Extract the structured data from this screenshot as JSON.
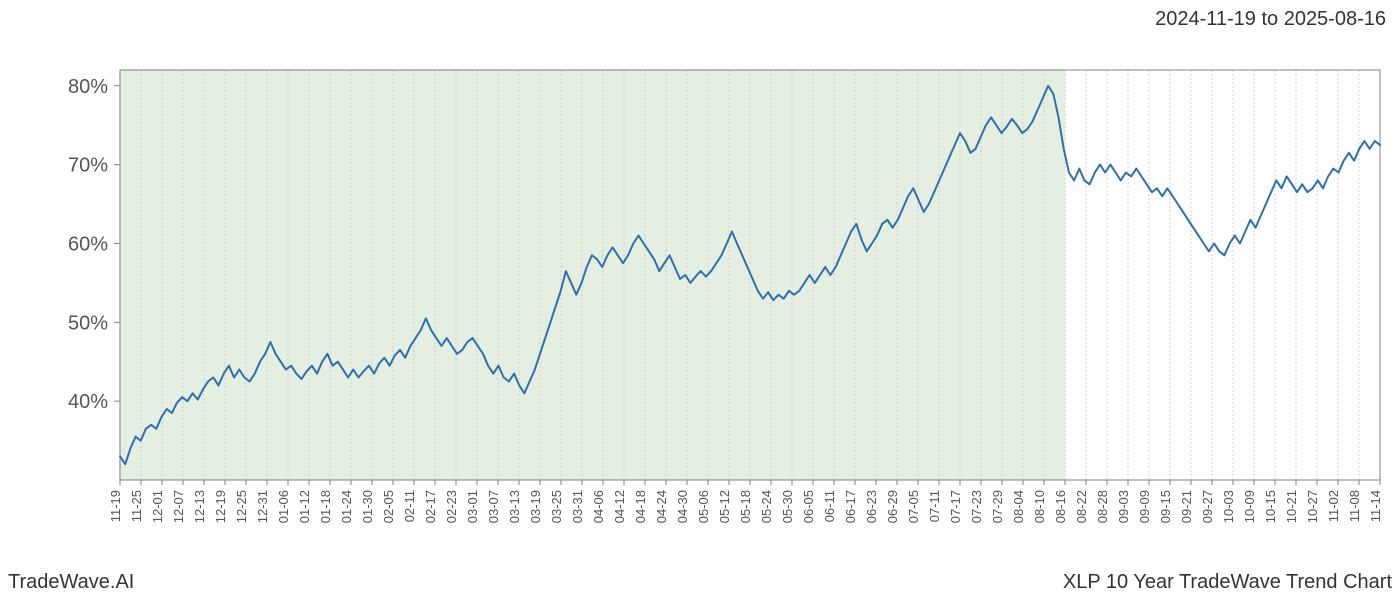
{
  "header": {
    "date_range": "2024-11-19 to 2025-08-16"
  },
  "footer": {
    "brand": "TradeWave.AI",
    "title": "XLP 10 Year TradeWave Trend Chart"
  },
  "chart": {
    "type": "line",
    "background_color": "#ffffff",
    "plot_border_color": "#808080",
    "grid_color": "#d0d0d0",
    "grid_dash": "2,2",
    "highlight_band": {
      "start_index": 0,
      "end_index": 45,
      "fill": "#e1ecdc",
      "opacity": 0.85
    },
    "line": {
      "color": "#2f6fae",
      "width": 2
    },
    "ylim": [
      30,
      82
    ],
    "yticks": [
      40,
      50,
      60,
      70,
      80
    ],
    "ytick_labels": [
      "40%",
      "50%",
      "60%",
      "70%",
      "80%"
    ],
    "y_fontsize": 20,
    "x_fontsize": 13,
    "x_labels": [
      "11-19",
      "11-25",
      "12-01",
      "12-07",
      "12-13",
      "12-19",
      "12-25",
      "12-31",
      "01-06",
      "01-12",
      "01-18",
      "01-24",
      "01-30",
      "02-05",
      "02-11",
      "02-17",
      "02-23",
      "03-01",
      "03-07",
      "03-13",
      "03-19",
      "03-25",
      "03-31",
      "04-06",
      "04-12",
      "04-18",
      "04-24",
      "04-30",
      "05-06",
      "05-12",
      "05-18",
      "05-24",
      "05-30",
      "06-05",
      "06-11",
      "06-17",
      "06-23",
      "06-29",
      "07-05",
      "07-11",
      "07-17",
      "07-23",
      "07-29",
      "08-04",
      "08-10",
      "08-16",
      "08-22",
      "08-28",
      "09-03",
      "09-09",
      "09-15",
      "09-21",
      "09-27",
      "10-03",
      "10-09",
      "10-15",
      "10-21",
      "10-27",
      "11-02",
      "11-08",
      "11-14"
    ],
    "series": [
      33.0,
      32.0,
      34.0,
      35.5,
      35.0,
      36.5,
      37.0,
      36.5,
      38.0,
      39.0,
      38.5,
      39.8,
      40.5,
      40.0,
      41.0,
      40.2,
      41.5,
      42.5,
      43.0,
      42.0,
      43.5,
      44.5,
      43.0,
      44.0,
      43.0,
      42.5,
      43.5,
      45.0,
      46.0,
      47.5,
      46.0,
      45.0,
      44.0,
      44.5,
      43.5,
      42.8,
      43.8,
      44.5,
      43.5,
      45.0,
      46.0,
      44.5,
      45.0,
      44.0,
      43.0,
      44.0,
      43.0,
      43.8,
      44.5,
      43.5,
      44.8,
      45.5,
      44.5,
      45.8,
      46.5,
      45.5,
      47.0,
      48.0,
      49.0,
      50.5,
      49.0,
      48.0,
      47.0,
      48.0,
      47.0,
      46.0,
      46.5,
      47.5,
      48.0,
      47.0,
      46.0,
      44.5,
      43.5,
      44.5,
      43.0,
      42.5,
      43.5,
      42.0,
      41.0,
      42.5,
      44.0,
      46.0,
      48.0,
      50.0,
      52.0,
      54.0,
      56.5,
      55.0,
      53.5,
      55.0,
      57.0,
      58.5,
      58.0,
      57.0,
      58.5,
      59.5,
      58.5,
      57.5,
      58.5,
      60.0,
      61.0,
      60.0,
      59.0,
      58.0,
      56.5,
      57.5,
      58.5,
      57.0,
      55.5,
      56.0,
      55.0,
      55.8,
      56.5,
      55.8,
      56.5,
      57.5,
      58.5,
      60.0,
      61.5,
      60.0,
      58.5,
      57.0,
      55.5,
      54.0,
      53.0,
      53.8,
      52.8,
      53.5,
      53.0,
      54.0,
      53.5,
      54.0,
      55.0,
      56.0,
      55.0,
      56.0,
      57.0,
      56.0,
      57.0,
      58.5,
      60.0,
      61.5,
      62.5,
      60.5,
      59.0,
      60.0,
      61.0,
      62.5,
      63.0,
      62.0,
      63.0,
      64.5,
      66.0,
      67.0,
      65.5,
      64.0,
      65.0,
      66.5,
      68.0,
      69.5,
      71.0,
      72.5,
      74.0,
      73.0,
      71.5,
      72.0,
      73.5,
      75.0,
      76.0,
      75.0,
      74.0,
      74.8,
      75.8,
      75.0,
      74.0,
      74.5,
      75.5,
      77.0,
      78.5,
      80.0,
      79.0,
      76.0,
      72.0,
      69.0,
      68.0,
      69.5,
      68.0,
      67.5,
      69.0,
      70.0,
      69.0,
      70.0,
      69.0,
      68.0,
      69.0,
      68.5,
      69.5,
      68.5,
      67.5,
      66.5,
      67.0,
      66.0,
      67.0,
      66.0,
      65.0,
      64.0,
      63.0,
      62.0,
      61.0,
      60.0,
      59.0,
      60.0,
      59.0,
      58.5,
      60.0,
      61.0,
      60.0,
      61.5,
      63.0,
      62.0,
      63.5,
      65.0,
      66.5,
      68.0,
      67.0,
      68.5,
      67.5,
      66.5,
      67.5,
      66.5,
      67.0,
      68.0,
      67.0,
      68.5,
      69.5,
      69.0,
      70.5,
      71.5,
      70.5,
      72.0,
      73.0,
      72.0,
      73.0,
      72.5
    ]
  }
}
